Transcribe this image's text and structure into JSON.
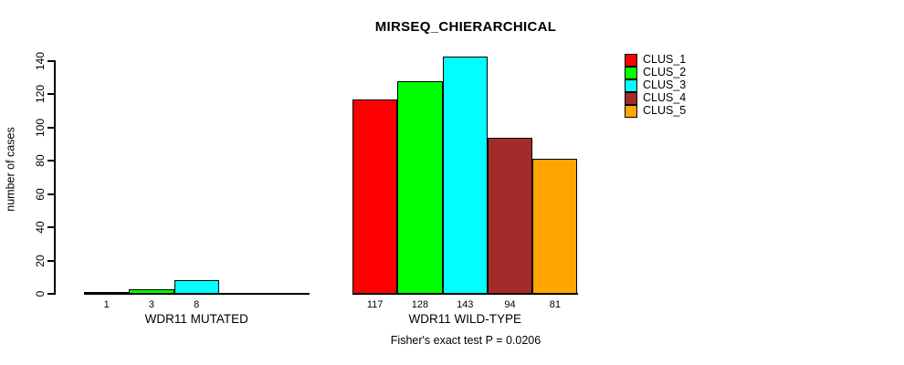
{
  "chart_data": {
    "type": "bar",
    "title": "MIRSEQ_CHIERARCHICAL",
    "ylabel": "number of cases",
    "xlabel": "",
    "ylim": [
      0,
      140
    ],
    "yticks": [
      0,
      20,
      40,
      60,
      80,
      100,
      120,
      140
    ],
    "categories": [
      "WDR11 MUTATED",
      "WDR11 WILD-TYPE"
    ],
    "series": [
      {
        "name": "CLUS_1",
        "color": "#FF0000",
        "values": [
          1,
          117
        ]
      },
      {
        "name": "CLUS_2",
        "color": "#00FF00",
        "values": [
          3,
          128
        ]
      },
      {
        "name": "CLUS_3",
        "color": "#00FFFF",
        "values": [
          8,
          143
        ]
      },
      {
        "name": "CLUS_4",
        "color": "#A52A2A",
        "values": [
          0,
          94
        ]
      },
      {
        "name": "CLUS_5",
        "color": "#FFA500",
        "values": [
          0,
          81
        ]
      }
    ],
    "bar_value_labels": {
      "WDR11 MUTATED": [
        "1",
        "3",
        "8"
      ],
      "WDR11 WILD-TYPE": [
        "117",
        "128",
        "143",
        "94",
        "81"
      ]
    },
    "grid": false,
    "legend_position": "top-right",
    "annotation": "Fisher's exact test P = 0.0206",
    "background_color": "#FFFFFF",
    "axis_color": "#000000"
  }
}
